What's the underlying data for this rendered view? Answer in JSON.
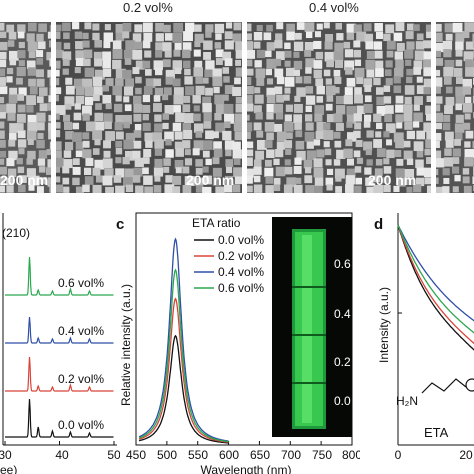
{
  "sem": {
    "panels": [
      {
        "label": "",
        "scale_bar": "200 nm"
      },
      {
        "label": "0.2 vol%",
        "scale_bar": "200 nm"
      },
      {
        "label": "0.4 vol%",
        "scale_bar": "200 nm"
      },
      {
        "label": "",
        "scale_bar": ""
      }
    ]
  },
  "panel_labels": {
    "c": "c",
    "d": "d"
  },
  "inset_labels": [
    "0.6",
    "0.4",
    "0.2",
    "0.0"
  ],
  "molecule": {
    "nh2": "H₂N",
    "name": "ETA"
  },
  "chart_data": [
    {
      "type": "line",
      "panel": "b",
      "peak_label": "(210)",
      "xlabel": "ee)",
      "ylabel": "",
      "x_ticks": [
        30,
        40,
        50
      ],
      "xlim": [
        30,
        50
      ],
      "series": [
        {
          "name": "0.6 vol%",
          "color": "#2aa84f"
        },
        {
          "name": "0.4 vol%",
          "color": "#2f4fa8"
        },
        {
          "name": "0.2 vol%",
          "color": "#d9443a"
        },
        {
          "name": "0.0 vol%",
          "color": "#111111"
        }
      ],
      "peaks_2theta": [
        34.5,
        36.1,
        38.7,
        42.0,
        45.5
      ]
    },
    {
      "type": "line",
      "panel": "c",
      "xlabel": "Wavelength (nm)",
      "ylabel": "Relative intensity (a.u.)",
      "xlim": [
        450,
        800
      ],
      "x_ticks": [
        450,
        500,
        550,
        600,
        650,
        700,
        750,
        800
      ],
      "legend_title": "ETA ratio",
      "legend_position": "top-right",
      "peak_wavelength": 514,
      "fwhm": 24,
      "series": [
        {
          "name": "0.0 vol%",
          "color": "#111111",
          "peak": 0.53
        },
        {
          "name": "0.2 vol%",
          "color": "#d9443a",
          "peak": 0.71
        },
        {
          "name": "0.4 vol%",
          "color": "#2f4fa8",
          "peak": 1.0
        },
        {
          "name": "0.6 vol%",
          "color": "#2aa84f",
          "peak": 0.85
        }
      ]
    },
    {
      "type": "line",
      "panel": "d",
      "xlabel": "",
      "ylabel": "Intensity (a.u.)",
      "x_ticks": [
        0,
        20
      ],
      "series": [
        {
          "name": "0.0 vol%",
          "color": "#111111",
          "tau": 10
        },
        {
          "name": "0.2 vol%",
          "color": "#d9443a",
          "tau": 11
        },
        {
          "name": "0.4 vol%",
          "color": "#2f4fa8",
          "tau": 16
        },
        {
          "name": "0.6 vol%",
          "color": "#2aa84f",
          "tau": 13
        }
      ]
    }
  ]
}
